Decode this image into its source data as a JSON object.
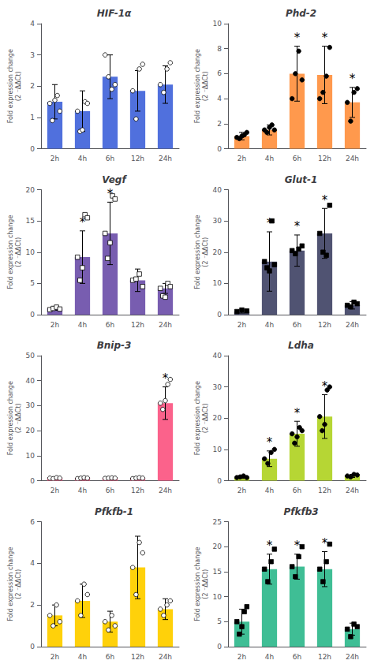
{
  "chart_data": [
    {
      "type": "bar",
      "title": "HIF-1α",
      "ylabel": "Fold expression change\n(2 ⁻ΔΔCt)",
      "categories": [
        "2h",
        "4h",
        "6h",
        "12h",
        "24h"
      ],
      "values": [
        1.5,
        1.2,
        2.3,
        1.85,
        2.05
      ],
      "errors": [
        0.55,
        0.65,
        0.7,
        0.65,
        0.6
      ],
      "points": [
        [
          1.45,
          0.9,
          1.55,
          1.7,
          1.2
        ],
        [
          1.2,
          0.55,
          0.6,
          1.5,
          1.45
        ],
        [
          3.0,
          2.3,
          1.9,
          2.05
        ],
        [
          1.85,
          0.95,
          2.55,
          2.7
        ],
        [
          2.05,
          1.8,
          2.55,
          2.75
        ]
      ],
      "marker": "open-circle",
      "annotations": [],
      "ylim": [
        0,
        4
      ],
      "yticks": [
        0,
        1,
        2,
        3,
        4
      ],
      "grid": false
    },
    {
      "type": "bar",
      "title": "Phd-2",
      "ylabel": "Fold expression change\n(2 ⁻ΔΔCt)",
      "categories": [
        "2h",
        "4h",
        "6h",
        "12h",
        "24h"
      ],
      "values": [
        1.0,
        1.5,
        6.0,
        5.9,
        3.7
      ],
      "errors": [
        0.3,
        0.4,
        2.2,
        2.3,
        1.2
      ],
      "points": [
        [
          0.9,
          0.8,
          1.0,
          1.1,
          1.3
        ],
        [
          1.5,
          1.3,
          1.7,
          1.9,
          1.5
        ],
        [
          4.0,
          6.0,
          7.8,
          5.5
        ],
        [
          4.0,
          4.5,
          5.8,
          8.1
        ],
        [
          3.7,
          2.2,
          4.5,
          4.8
        ]
      ],
      "marker": "circle",
      "annotations": [
        {
          "x": "6h",
          "text": "*"
        },
        {
          "x": "12h",
          "text": "*"
        },
        {
          "x": "24h",
          "text": "*"
        }
      ],
      "ylim": [
        0,
        10
      ],
      "yticks": [
        0,
        2,
        4,
        6,
        8,
        10
      ],
      "grid": false
    },
    {
      "type": "bar",
      "title": "Vegf",
      "ylabel": "Fold expression change\n(2 ⁻ΔΔCt)",
      "categories": [
        "2h",
        "4h",
        "6h",
        "12h",
        "24h"
      ],
      "values": [
        1.0,
        9.2,
        13.0,
        5.5,
        4.2
      ],
      "errors": [
        0.3,
        4.2,
        5.0,
        1.8,
        0.8
      ],
      "points": [
        [
          0.8,
          1.0,
          1.2,
          0.9
        ],
        [
          9.2,
          5.5,
          7.5,
          16.0,
          15.5
        ],
        [
          13.0,
          9.0,
          11.5,
          19.0,
          18.5
        ],
        [
          5.5,
          5.7,
          6.5,
          4.5
        ],
        [
          4.2,
          3.0,
          2.8,
          5.0,
          4.5
        ]
      ],
      "marker": "open-square",
      "annotations": [
        {
          "x": "4h",
          "text": "*"
        },
        {
          "x": "6h",
          "text": "*"
        }
      ],
      "ylim": [
        0,
        20
      ],
      "yticks": [
        0,
        5,
        10,
        15,
        20
      ],
      "grid": false
    },
    {
      "type": "bar",
      "title": "Glut-1",
      "ylabel": "Fold expression change\n(2 ⁻ΔΔCt)",
      "categories": [
        "2h",
        "4h",
        "6h",
        "12h",
        "24h"
      ],
      "values": [
        1.0,
        17.0,
        20.5,
        26.0,
        3.0
      ],
      "errors": [
        0.5,
        9.5,
        5.0,
        8.0,
        1.2
      ],
      "points": [
        [
          1.0,
          1.5,
          1.2
        ],
        [
          17.0,
          15.0,
          14.0,
          30.0,
          16.0
        ],
        [
          20.5,
          19.5,
          21.0,
          22.0
        ],
        [
          26.0,
          20.0,
          19.0,
          35.0
        ],
        [
          3.0,
          2.5,
          4.0,
          3.5
        ]
      ],
      "marker": "square",
      "annotations": [
        {
          "x": "4h",
          "text": "*"
        },
        {
          "x": "6h",
          "text": "*"
        },
        {
          "x": "12h",
          "text": "*"
        }
      ],
      "ylim": [
        0,
        40
      ],
      "yticks": [
        0,
        10,
        20,
        30,
        40
      ],
      "grid": false
    },
    {
      "type": "bar",
      "title": "Bnip-3",
      "ylabel": "Fold expression change\n(2 ⁻ΔΔCt)",
      "categories": [
        "2h",
        "4h",
        "6h",
        "12h",
        "24h"
      ],
      "values": [
        1.0,
        1.0,
        1.0,
        1.0,
        31.0
      ],
      "errors": [
        0.3,
        0.3,
        0.3,
        0.3,
        6.5
      ],
      "points": [
        [
          1.0,
          0.8,
          1.2,
          1.0
        ],
        [
          0.8,
          1.0,
          1.2,
          1.0
        ],
        [
          0.9,
          1.0,
          1.1,
          1.0
        ],
        [
          0.8,
          1.0,
          1.2,
          1.0
        ],
        [
          31.0,
          28.5,
          32.0,
          38.5,
          40.5
        ]
      ],
      "marker": "open-circle",
      "annotations": [
        {
          "x": "24h",
          "text": "*"
        }
      ],
      "ylim": [
        0,
        50
      ],
      "yticks": [
        0,
        10,
        20,
        30,
        40,
        50
      ],
      "grid": false
    },
    {
      "type": "bar",
      "title": "Ldha",
      "ylabel": "Fold expression change\n(2 ⁻ΔΔCt)",
      "categories": [
        "2h",
        "4h",
        "6h",
        "12h",
        "24h"
      ],
      "values": [
        1.0,
        7.0,
        15.0,
        20.5,
        1.5
      ],
      "errors": [
        0.3,
        2.5,
        4.0,
        7.0,
        0.5
      ],
      "points": [
        [
          1.0,
          1.2,
          1.5,
          1.0
        ],
        [
          7.0,
          5.5,
          9.0,
          10.0
        ],
        [
          15.0,
          12.0,
          14.0,
          17.0,
          16.0
        ],
        [
          20.5,
          16.0,
          18.0,
          29.0,
          30.0
        ],
        [
          1.5,
          1.2,
          2.0,
          1.8
        ]
      ],
      "marker": "circle",
      "annotations": [
        {
          "x": "4h",
          "text": "*"
        },
        {
          "x": "6h",
          "text": "*"
        },
        {
          "x": "12h",
          "text": "*"
        }
      ],
      "ylim": [
        0,
        40
      ],
      "yticks": [
        0,
        10,
        20,
        30,
        40
      ],
      "grid": false
    },
    {
      "type": "bar",
      "title": "Pfkfb-1",
      "ylabel": "Fold expression change\n(2 ⁻ΔΔCt)",
      "categories": [
        "2h",
        "4h",
        "6h",
        "12h",
        "24h"
      ],
      "values": [
        1.5,
        2.2,
        1.2,
        3.8,
        1.8
      ],
      "errors": [
        0.5,
        0.8,
        0.5,
        1.5,
        0.5
      ],
      "points": [
        [
          1.5,
          1.0,
          2.0,
          1.2
        ],
        [
          2.2,
          1.5,
          3.0,
          2.5
        ],
        [
          1.2,
          0.8,
          1.5,
          1.0
        ],
        [
          3.8,
          2.5,
          5.0,
          4.5
        ],
        [
          1.8,
          1.5,
          2.0,
          2.2
        ]
      ],
      "marker": "open-circle",
      "annotations": [],
      "ylim": [
        0,
        6
      ],
      "yticks": [
        0,
        2,
        4,
        6
      ],
      "grid": false
    },
    {
      "type": "bar",
      "title": "Pfkfb3",
      "ylabel": "Fold expression change\n(2 ⁻ΔΔCt)",
      "categories": [
        "2h",
        "4h",
        "6h",
        "12h",
        "24h"
      ],
      "values": [
        5.0,
        15.5,
        16.0,
        15.5,
        3.5
      ],
      "errors": [
        2.5,
        3.0,
        2.5,
        3.5,
        1.2
      ],
      "points": [
        [
          5.0,
          2.5,
          4.0,
          7.0,
          8.0
        ],
        [
          15.5,
          13.0,
          17.0,
          19.5
        ],
        [
          16.0,
          14.0,
          18.0,
          20.0
        ],
        [
          15.5,
          13.0,
          17.0,
          20.5
        ],
        [
          3.5,
          2.0,
          4.5,
          4.0
        ]
      ],
      "marker": "square",
      "annotations": [
        {
          "x": "4h",
          "text": "*"
        },
        {
          "x": "6h",
          "text": "*"
        },
        {
          "x": "12h",
          "text": "*"
        }
      ],
      "ylim": [
        0,
        25
      ],
      "yticks": [
        0,
        5,
        10,
        15,
        20,
        25
      ],
      "grid": false
    }
  ]
}
